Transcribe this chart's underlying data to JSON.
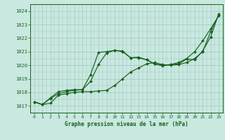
{
  "xlabel": "Graphe pression niveau de la mer (hPa)",
  "background_color": "#c8e8e0",
  "grid_color": "#a0c8c0",
  "line_color": "#1a6020",
  "ylim": [
    1016.5,
    1024.5
  ],
  "yticks": [
    1017,
    1018,
    1019,
    1020,
    1021,
    1022,
    1023,
    1024
  ],
  "xlim": [
    -0.5,
    23.5
  ],
  "xticks": [
    0,
    1,
    2,
    3,
    4,
    5,
    6,
    7,
    8,
    9,
    10,
    11,
    12,
    13,
    14,
    15,
    16,
    17,
    18,
    19,
    20,
    21,
    22,
    23
  ],
  "series": [
    [
      1017.3,
      1017.1,
      1017.2,
      1017.8,
      1017.9,
      1018.0,
      1018.05,
      1018.05,
      1018.1,
      1018.15,
      1018.5,
      1019.0,
      1019.5,
      1019.8,
      1020.1,
      1020.2,
      1020.05,
      1020.0,
      1020.05,
      1020.2,
      1020.5,
      1021.0,
      1022.5,
      1023.7
    ],
    [
      1017.3,
      1017.1,
      1017.55,
      1017.9,
      1018.05,
      1018.15,
      1018.2,
      1018.8,
      1020.05,
      1020.9,
      1021.1,
      1021.05,
      1020.55,
      1020.55,
      1020.4,
      1020.1,
      1019.95,
      1020.05,
      1020.2,
      1020.5,
      1021.0,
      1021.8,
      1022.7,
      1023.65
    ],
    [
      1017.3,
      1017.1,
      1017.6,
      1018.05,
      1018.15,
      1018.2,
      1018.2,
      1019.3,
      1020.95,
      1021.0,
      1021.1,
      1021.0,
      1020.55,
      1020.6,
      1020.4,
      1020.1,
      1020.0,
      1020.05,
      1020.1,
      1020.45,
      1020.4,
      1021.05,
      1022.1,
      1023.8
    ]
  ]
}
